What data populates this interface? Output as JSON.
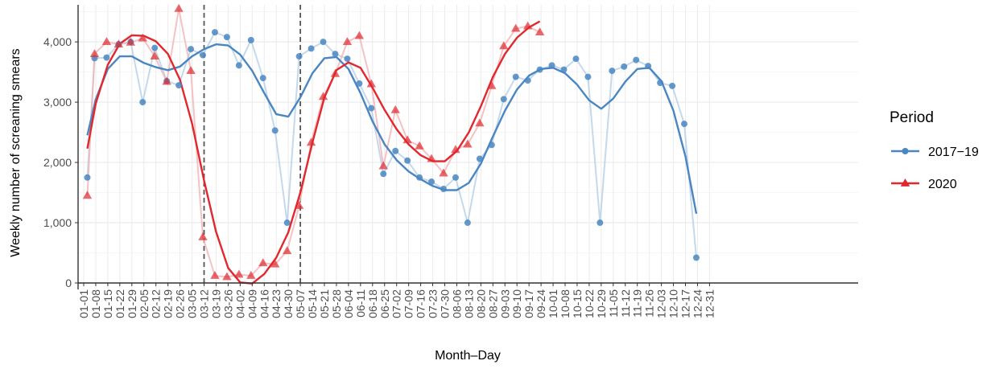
{
  "chart_data": {
    "type": "line",
    "xlabel": "Month–Day",
    "ylabel": "Weekly number of screaning smears",
    "ylim": [
      0,
      4600
    ],
    "yticks": [
      0,
      1000,
      2000,
      3000,
      4000
    ],
    "ytick_labels": [
      "0",
      "1,000",
      "2,000",
      "3,000",
      "4,000"
    ],
    "categories": [
      "01-01",
      "01-08",
      "01-15",
      "01-22",
      "01-29",
      "02-05",
      "02-12",
      "02-19",
      "02-26",
      "03-05",
      "03-12",
      "03-19",
      "03-26",
      "04-02",
      "04-09",
      "04-16",
      "04-23",
      "04-30",
      "05-07",
      "05-14",
      "05-21",
      "05-28",
      "06-04",
      "06-11",
      "06-18",
      "06-25",
      "07-02",
      "07-09",
      "07-16",
      "07-23",
      "07-30",
      "08-06",
      "08-13",
      "08-20",
      "08-27",
      "09-03",
      "09-10",
      "09-17",
      "09-24",
      "10-01",
      "10-08",
      "10-15",
      "10-22",
      "10-29",
      "11-05",
      "11-12",
      "11-19",
      "11-26",
      "12-03",
      "12-10",
      "12-17",
      "12-24",
      "12-31"
    ],
    "vlines": [
      "03-12",
      "05-07"
    ],
    "grid": true,
    "legend": {
      "title": "Period",
      "position": "right"
    },
    "series": [
      {
        "name": "2017−19",
        "color": "#4a86c2",
        "marker": "circle",
        "points": [
          {
            "x": 0.3,
            "y": 1750
          },
          {
            "x": 0.9,
            "y": 3730
          },
          {
            "x": 1.9,
            "y": 3740
          },
          {
            "x": 2.9,
            "y": 3960
          },
          {
            "x": 3.9,
            "y": 4000
          },
          {
            "x": 4.9,
            "y": 3000
          },
          {
            "x": 5.9,
            "y": 3900
          },
          {
            "x": 6.9,
            "y": 3350
          },
          {
            "x": 7.9,
            "y": 3280
          },
          {
            "x": 8.9,
            "y": 3880
          },
          {
            "x": 9.9,
            "y": 3780
          },
          {
            "x": 10.9,
            "y": 4160
          },
          {
            "x": 11.9,
            "y": 4080
          },
          {
            "x": 12.9,
            "y": 3610
          },
          {
            "x": 13.9,
            "y": 4030
          },
          {
            "x": 14.9,
            "y": 3400
          },
          {
            "x": 15.9,
            "y": 2530
          },
          {
            "x": 16.9,
            "y": 1000
          },
          {
            "x": 17.9,
            "y": 3760
          },
          {
            "x": 18.9,
            "y": 3890
          },
          {
            "x": 19.9,
            "y": 4000
          },
          {
            "x": 20.9,
            "y": 3800
          },
          {
            "x": 21.9,
            "y": 3720
          },
          {
            "x": 22.9,
            "y": 3310
          },
          {
            "x": 23.9,
            "y": 2900
          },
          {
            "x": 24.9,
            "y": 1810
          },
          {
            "x": 25.9,
            "y": 2190
          },
          {
            "x": 26.9,
            "y": 2030
          },
          {
            "x": 27.9,
            "y": 1750
          },
          {
            "x": 28.9,
            "y": 1680
          },
          {
            "x": 29.9,
            "y": 1560
          },
          {
            "x": 30.9,
            "y": 1750
          },
          {
            "x": 31.9,
            "y": 1000
          },
          {
            "x": 32.9,
            "y": 2060
          },
          {
            "x": 33.9,
            "y": 2290
          },
          {
            "x": 34.9,
            "y": 3050
          },
          {
            "x": 35.9,
            "y": 3420
          },
          {
            "x": 36.9,
            "y": 3360
          },
          {
            "x": 37.9,
            "y": 3540
          },
          {
            "x": 38.9,
            "y": 3610
          },
          {
            "x": 39.9,
            "y": 3540
          },
          {
            "x": 40.9,
            "y": 3720
          },
          {
            "x": 41.9,
            "y": 3420
          },
          {
            "x": 42.9,
            "y": 1000
          },
          {
            "x": 43.9,
            "y": 3520
          },
          {
            "x": 44.9,
            "y": 3590
          },
          {
            "x": 45.9,
            "y": 3700
          },
          {
            "x": 46.9,
            "y": 3600
          },
          {
            "x": 47.9,
            "y": 3320
          },
          {
            "x": 48.9,
            "y": 3270
          },
          {
            "x": 49.9,
            "y": 2640
          },
          {
            "x": 50.9,
            "y": 420
          }
        ],
        "smooth": [
          {
            "x": 0.3,
            "y": 2450
          },
          {
            "x": 1.0,
            "y": 3050
          },
          {
            "x": 2.0,
            "y": 3550
          },
          {
            "x": 3.0,
            "y": 3760
          },
          {
            "x": 4.0,
            "y": 3760
          },
          {
            "x": 5.0,
            "y": 3650
          },
          {
            "x": 6.0,
            "y": 3580
          },
          {
            "x": 7.0,
            "y": 3530
          },
          {
            "x": 8.0,
            "y": 3590
          },
          {
            "x": 9.0,
            "y": 3760
          },
          {
            "x": 10.0,
            "y": 3880
          },
          {
            "x": 11.0,
            "y": 3960
          },
          {
            "x": 12.0,
            "y": 3940
          },
          {
            "x": 13.0,
            "y": 3790
          },
          {
            "x": 14.0,
            "y": 3520
          },
          {
            "x": 15.0,
            "y": 3150
          },
          {
            "x": 16.0,
            "y": 2800
          },
          {
            "x": 17.0,
            "y": 2760
          },
          {
            "x": 18.0,
            "y": 3080
          },
          {
            "x": 19.0,
            "y": 3480
          },
          {
            "x": 20.0,
            "y": 3730
          },
          {
            "x": 21.0,
            "y": 3750
          },
          {
            "x": 22.0,
            "y": 3550
          },
          {
            "x": 23.0,
            "y": 3150
          },
          {
            "x": 24.0,
            "y": 2680
          },
          {
            "x": 25.0,
            "y": 2300
          },
          {
            "x": 26.0,
            "y": 2040
          },
          {
            "x": 27.0,
            "y": 1850
          },
          {
            "x": 28.0,
            "y": 1720
          },
          {
            "x": 29.0,
            "y": 1610
          },
          {
            "x": 30.0,
            "y": 1540
          },
          {
            "x": 31.0,
            "y": 1540
          },
          {
            "x": 32.0,
            "y": 1660
          },
          {
            "x": 33.0,
            "y": 1980
          },
          {
            "x": 34.0,
            "y": 2430
          },
          {
            "x": 35.0,
            "y": 2860
          },
          {
            "x": 36.0,
            "y": 3210
          },
          {
            "x": 37.0,
            "y": 3440
          },
          {
            "x": 38.0,
            "y": 3550
          },
          {
            "x": 39.0,
            "y": 3570
          },
          {
            "x": 40.0,
            "y": 3480
          },
          {
            "x": 41.0,
            "y": 3290
          },
          {
            "x": 42.0,
            "y": 3030
          },
          {
            "x": 43.0,
            "y": 2890
          },
          {
            "x": 44.0,
            "y": 3060
          },
          {
            "x": 45.0,
            "y": 3340
          },
          {
            "x": 46.0,
            "y": 3550
          },
          {
            "x": 47.0,
            "y": 3570
          },
          {
            "x": 48.0,
            "y": 3350
          },
          {
            "x": 49.0,
            "y": 2860
          },
          {
            "x": 50.0,
            "y": 2100
          },
          {
            "x": 50.9,
            "y": 1150
          }
        ]
      },
      {
        "name": "2020",
        "color": "#e0282e",
        "marker": "triangle",
        "points": [
          {
            "x": 0.3,
            "y": 1450
          },
          {
            "x": 0.9,
            "y": 3800
          },
          {
            "x": 1.9,
            "y": 4000
          },
          {
            "x": 2.9,
            "y": 3960
          },
          {
            "x": 3.9,
            "y": 3990
          },
          {
            "x": 4.9,
            "y": 4060
          },
          {
            "x": 5.9,
            "y": 3760
          },
          {
            "x": 6.9,
            "y": 3340
          },
          {
            "x": 7.9,
            "y": 4550
          },
          {
            "x": 8.9,
            "y": 3520
          },
          {
            "x": 9.9,
            "y": 760
          },
          {
            "x": 10.9,
            "y": 120
          },
          {
            "x": 11.9,
            "y": 100
          },
          {
            "x": 12.9,
            "y": 140
          },
          {
            "x": 13.9,
            "y": 120
          },
          {
            "x": 14.9,
            "y": 330
          },
          {
            "x": 15.9,
            "y": 310
          },
          {
            "x": 16.9,
            "y": 530
          },
          {
            "x": 17.9,
            "y": 1280
          },
          {
            "x": 18.9,
            "y": 2330
          },
          {
            "x": 19.9,
            "y": 3090
          },
          {
            "x": 20.9,
            "y": 3470
          },
          {
            "x": 21.9,
            "y": 4000
          },
          {
            "x": 22.9,
            "y": 4100
          },
          {
            "x": 23.9,
            "y": 3300
          },
          {
            "x": 24.9,
            "y": 1940
          },
          {
            "x": 25.9,
            "y": 2870
          },
          {
            "x": 26.9,
            "y": 2370
          },
          {
            "x": 27.9,
            "y": 2270
          },
          {
            "x": 28.9,
            "y": 2060
          },
          {
            "x": 29.9,
            "y": 1820
          },
          {
            "x": 30.9,
            "y": 2210
          },
          {
            "x": 31.9,
            "y": 2300
          },
          {
            "x": 32.9,
            "y": 2650
          },
          {
            "x": 33.9,
            "y": 3270
          },
          {
            "x": 34.9,
            "y": 3930
          },
          {
            "x": 35.9,
            "y": 4220
          },
          {
            "x": 36.9,
            "y": 4260
          },
          {
            "x": 37.9,
            "y": 4160
          }
        ],
        "smooth": [
          {
            "x": 0.3,
            "y": 2230
          },
          {
            "x": 1.0,
            "y": 2980
          },
          {
            "x": 2.0,
            "y": 3620
          },
          {
            "x": 3.0,
            "y": 3970
          },
          {
            "x": 4.0,
            "y": 4110
          },
          {
            "x": 5.0,
            "y": 4100
          },
          {
            "x": 6.0,
            "y": 4010
          },
          {
            "x": 7.0,
            "y": 3800
          },
          {
            "x": 8.0,
            "y": 3370
          },
          {
            "x": 9.0,
            "y": 2650
          },
          {
            "x": 10.0,
            "y": 1700
          },
          {
            "x": 11.0,
            "y": 850
          },
          {
            "x": 12.0,
            "y": 250
          },
          {
            "x": 13.0,
            "y": 10
          },
          {
            "x": 14.0,
            "y": -10
          },
          {
            "x": 15.0,
            "y": 150
          },
          {
            "x": 16.0,
            "y": 420
          },
          {
            "x": 17.0,
            "y": 840
          },
          {
            "x": 18.0,
            "y": 1500
          },
          {
            "x": 19.0,
            "y": 2330
          },
          {
            "x": 20.0,
            "y": 3080
          },
          {
            "x": 21.0,
            "y": 3530
          },
          {
            "x": 22.0,
            "y": 3660
          },
          {
            "x": 23.0,
            "y": 3570
          },
          {
            "x": 24.0,
            "y": 3240
          },
          {
            "x": 25.0,
            "y": 2870
          },
          {
            "x": 26.0,
            "y": 2550
          },
          {
            "x": 27.0,
            "y": 2300
          },
          {
            "x": 28.0,
            "y": 2120
          },
          {
            "x": 29.0,
            "y": 2020
          },
          {
            "x": 30.0,
            "y": 2020
          },
          {
            "x": 31.0,
            "y": 2190
          },
          {
            "x": 32.0,
            "y": 2500
          },
          {
            "x": 33.0,
            "y": 2930
          },
          {
            "x": 34.0,
            "y": 3420
          },
          {
            "x": 35.0,
            "y": 3800
          },
          {
            "x": 36.0,
            "y": 4070
          },
          {
            "x": 37.0,
            "y": 4240
          },
          {
            "x": 37.9,
            "y": 4340
          }
        ]
      }
    ]
  }
}
